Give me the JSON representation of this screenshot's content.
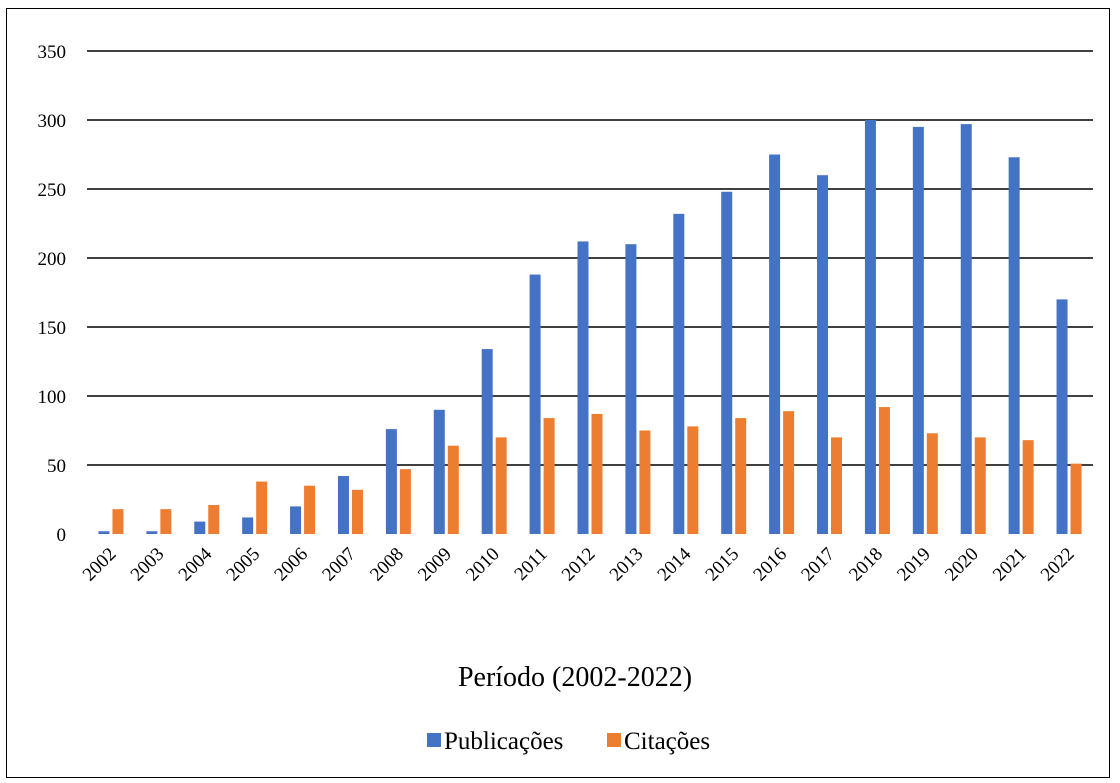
{
  "chart_data": {
    "type": "bar",
    "categories": [
      "2002",
      "2003",
      "2004",
      "2005",
      "2006",
      "2007",
      "2008",
      "2009",
      "2010",
      "2011",
      "2012",
      "2013",
      "2014",
      "2015",
      "2016",
      "2017",
      "2018",
      "2019",
      "2020",
      "2021",
      "2022"
    ],
    "series": [
      {
        "name": "Publicações",
        "color": "#4472C4",
        "values": [
          2,
          2,
          9,
          12,
          20,
          42,
          76,
          90,
          134,
          188,
          212,
          210,
          232,
          248,
          275,
          260,
          300,
          295,
          297,
          273,
          170
        ]
      },
      {
        "name": "Citações",
        "color": "#ED7D31",
        "values": [
          18,
          18,
          21,
          38,
          35,
          32,
          47,
          64,
          70,
          84,
          87,
          75,
          78,
          84,
          89,
          70,
          92,
          73,
          70,
          68,
          51
        ]
      }
    ],
    "xlabel": "Período (2002-2022)",
    "ylabel": "",
    "ylim": [
      0,
      350
    ],
    "yticks": [
      "0",
      "50",
      "100",
      "150",
      "200",
      "250",
      "300",
      "350"
    ],
    "grid": true,
    "legend_position": "bottom-center"
  }
}
